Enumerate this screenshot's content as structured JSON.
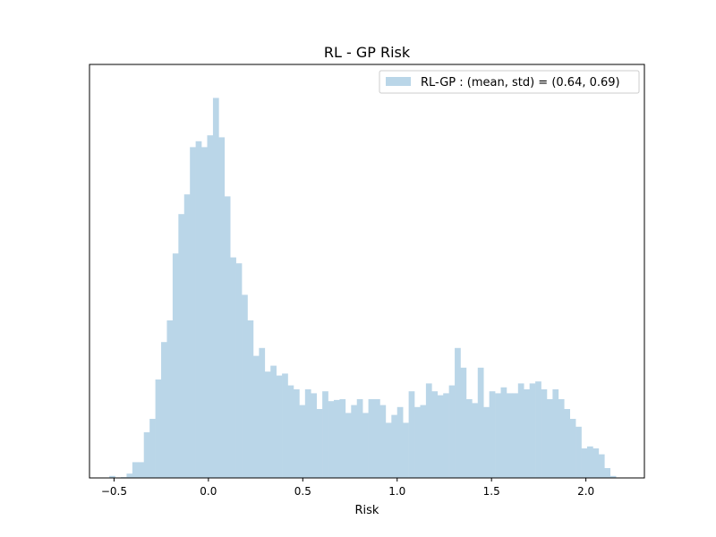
{
  "chart_data": {
    "type": "bar",
    "title": "RL - GP Risk",
    "xlabel": "Risk",
    "ylabel": "",
    "xlim": [
      -0.63,
      2.31
    ],
    "ylim": [
      0,
      1.05
    ],
    "x_ticks": [
      -0.5,
      0.0,
      0.5,
      1.0,
      1.5,
      2.0
    ],
    "x_tick_labels": [
      "−0.5",
      "0.0",
      "0.5",
      "1.0",
      "1.5",
      "2.0"
    ],
    "y_ticks_visible": false,
    "grid": false,
    "legend_placement": "top-right",
    "bar_color": "#bad6e8",
    "bin_width": 0.0305,
    "series": [
      {
        "name": "RL-GP : (mean, std) = (0.64, 0.69)",
        "bins_left": [
          -0.525,
          -0.4945,
          -0.464,
          -0.4335,
          -0.403,
          -0.3725,
          -0.342,
          -0.3115,
          -0.281,
          -0.2505,
          -0.22,
          -0.1895,
          -0.159,
          -0.1285,
          -0.098,
          -0.0675,
          -0.037,
          -0.0065,
          0.024,
          0.0545,
          0.085,
          0.1155,
          0.146,
          0.1765,
          0.207,
          0.2375,
          0.268,
          0.2985,
          0.329,
          0.3595,
          0.39,
          0.4205,
          0.451,
          0.4815,
          0.512,
          0.5425,
          0.573,
          0.6035,
          0.634,
          0.6645,
          0.695,
          0.7255,
          0.756,
          0.7865,
          0.817,
          0.8475,
          0.878,
          0.9085,
          0.939,
          0.9695,
          1.0,
          1.0305,
          1.061,
          1.0915,
          1.122,
          1.1525,
          1.183,
          1.2135,
          1.244,
          1.2745,
          1.305,
          1.3355,
          1.366,
          1.3965,
          1.427,
          1.4575,
          1.488,
          1.5185,
          1.549,
          1.5795,
          1.61,
          1.6405,
          1.671,
          1.7015,
          1.732,
          1.7625,
          1.793,
          1.8235,
          1.854,
          1.8845,
          1.915,
          1.9455,
          1.976,
          2.0065,
          2.037,
          2.0675,
          2.098,
          2.1285
        ],
        "values": [
          0.005,
          0.0,
          0.002,
          0.011,
          0.04,
          0.04,
          0.116,
          0.15,
          0.25,
          0.345,
          0.4,
          0.57,
          0.67,
          0.72,
          0.84,
          0.855,
          0.84,
          0.87,
          0.965,
          0.865,
          0.715,
          0.56,
          0.545,
          0.465,
          0.4,
          0.31,
          0.33,
          0.27,
          0.285,
          0.26,
          0.265,
          0.235,
          0.225,
          0.185,
          0.225,
          0.215,
          0.175,
          0.22,
          0.195,
          0.198,
          0.2,
          0.165,
          0.185,
          0.2,
          0.165,
          0.2,
          0.2,
          0.185,
          0.14,
          0.16,
          0.18,
          0.14,
          0.22,
          0.18,
          0.185,
          0.24,
          0.22,
          0.21,
          0.215,
          0.235,
          0.33,
          0.28,
          0.2,
          0.19,
          0.28,
          0.18,
          0.22,
          0.215,
          0.23,
          0.215,
          0.215,
          0.24,
          0.225,
          0.24,
          0.245,
          0.225,
          0.2,
          0.225,
          0.2,
          0.175,
          0.15,
          0.13,
          0.075,
          0.08,
          0.075,
          0.06,
          0.025,
          0.005
        ]
      }
    ]
  }
}
